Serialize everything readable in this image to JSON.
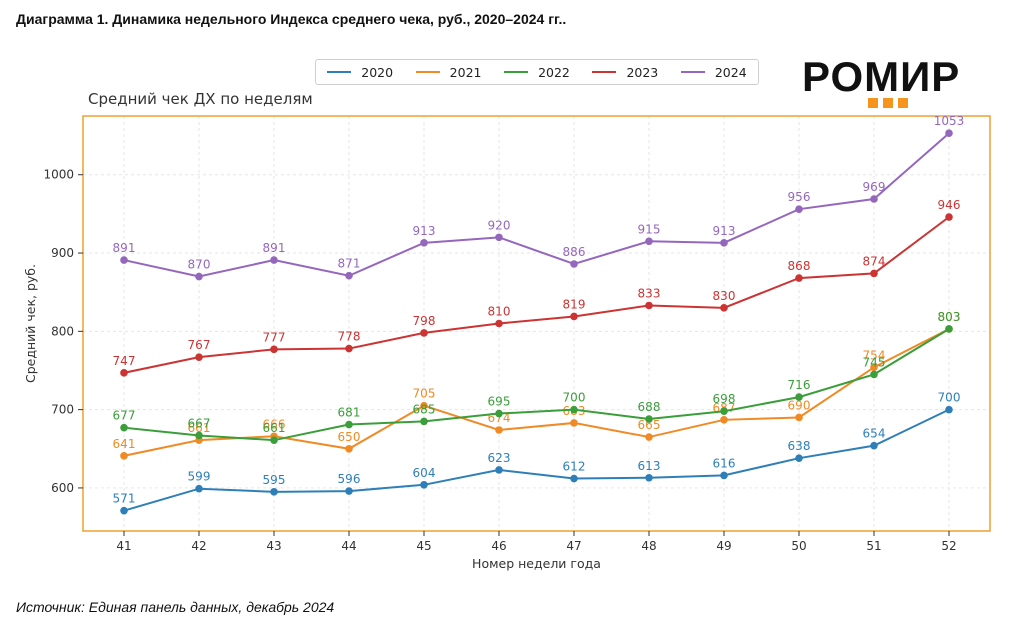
{
  "heading": "Диаграмма 1. Динамика недельного Индекса среднего чека, руб., 2020–2024 гг..",
  "source": "Источник: Единая панель данных, декабрь 2024",
  "logo": {
    "text": "РОМИР"
  },
  "colors": {
    "frame": "#f0a030",
    "grid": "#e6e6e6"
  },
  "chart_data": {
    "type": "line",
    "title": "Средний чек ДХ по неделям",
    "xlabel": "Номер недели года",
    "ylabel": "Средний чек, руб.",
    "categories": [
      "41",
      "42",
      "43",
      "44",
      "45",
      "46",
      "47",
      "48",
      "49",
      "50",
      "51",
      "52"
    ],
    "ylim": [
      545,
      1075
    ],
    "yticks": [
      "600",
      "700",
      "800",
      "900",
      "1000"
    ],
    "series": [
      {
        "name": "2020",
        "color": "#2e7fb8",
        "values": [
          571,
          599,
          595,
          596,
          604,
          623,
          612,
          613,
          616,
          638,
          654,
          700
        ]
      },
      {
        "name": "2021",
        "color": "#f08a24",
        "values": [
          641,
          661,
          666,
          650,
          705,
          674,
          683,
          665,
          687,
          690,
          754,
          803
        ]
      },
      {
        "name": "2022",
        "color": "#3a9e3a",
        "values": [
          677,
          667,
          661,
          681,
          685,
          695,
          700,
          688,
          698,
          716,
          745,
          803
        ]
      },
      {
        "name": "2023",
        "color": "#cc3333",
        "values": [
          747,
          767,
          777,
          778,
          798,
          810,
          819,
          833,
          830,
          868,
          874,
          946
        ]
      },
      {
        "name": "2024",
        "color": "#9467bd",
        "values": [
          891,
          870,
          891,
          871,
          913,
          920,
          886,
          915,
          913,
          956,
          969,
          1053
        ]
      }
    ]
  }
}
